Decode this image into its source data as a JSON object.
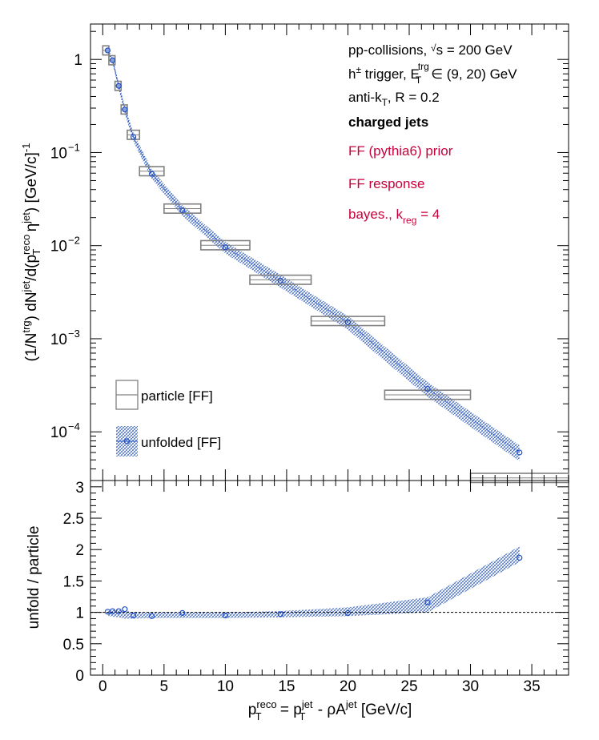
{
  "chart_data": {
    "type": "scatter",
    "top_panel": {
      "ylabel": "(1/N^{trg}) dN^{jet}/d(p_{T}^{reco} η^{jet}) [GeV/c]^{-1}",
      "yscale": "log",
      "ylim": [
        3e-05,
        2.4
      ],
      "ytick_labels": [
        "1",
        "10",
        "10",
        "10",
        "10"
      ],
      "ytick_exps": [
        "",
        "−1",
        "−2",
        "−3",
        "−4"
      ],
      "annotations": {
        "line1": "pp-collisions, √s = 200 GeV",
        "line2": "h± trigger, E_T^trg ∈ (9, 20) GeV",
        "line3": "anti-k_T, R = 0.2",
        "line4": "charged jets",
        "line5": "FF (pythia6) prior",
        "line6": "FF response",
        "line7": "bayes., k_reg = 4"
      },
      "legend": {
        "placement": "bottom-left",
        "entries": [
          "particle [FF]",
          "unfolded [FF]"
        ]
      },
      "particle": {
        "name": "particle [FF]",
        "x_low": [
          0,
          0.5,
          1,
          1.5,
          2,
          3,
          5,
          8,
          12,
          17,
          23,
          30
        ],
        "x_high": [
          0.5,
          1,
          1.5,
          2,
          3,
          5,
          8,
          12,
          17,
          23,
          30,
          38
        ],
        "values": [
          1.25,
          0.98,
          0.52,
          0.29,
          0.155,
          0.063,
          0.025,
          0.0101,
          0.0043,
          0.00155,
          0.00025,
          3.2e-05
        ]
      },
      "unfolded": {
        "name": "unfolded [FF]",
        "x": [
          0.4,
          0.8,
          1.3,
          1.8,
          2.5,
          4,
          6.5,
          10,
          14.5,
          20,
          26.5,
          34
        ],
        "values": [
          1.25,
          0.98,
          0.52,
          0.29,
          0.147,
          0.059,
          0.024,
          0.0096,
          0.0042,
          0.0015,
          0.00029,
          6e-05
        ]
      }
    },
    "bottom_panel": {
      "ylabel": "unfold / particle",
      "ylim": [
        0,
        3.1
      ],
      "yticks": [
        0,
        0.5,
        1,
        1.5,
        2,
        2.5,
        3
      ],
      "ytick_labels": [
        "0",
        "0.5",
        "1",
        "1.5",
        "2",
        "2.5",
        "3"
      ],
      "reference_line": 1,
      "ratio": {
        "x": [
          0.4,
          0.8,
          1.3,
          1.8,
          2.5,
          4,
          6.5,
          10,
          14.5,
          20,
          26.5,
          34
        ],
        "values": [
          1.01,
          1.02,
          1.02,
          1.05,
          0.95,
          0.94,
          0.99,
          0.95,
          0.97,
          0.99,
          1.16,
          1.87
        ]
      },
      "band_low": [
        0.95,
        0.93,
        0.92,
        0.9,
        0.9,
        0.91,
        0.91,
        0.91,
        0.92,
        0.94,
        1.0,
        1.8
      ],
      "band_high": [
        1.03,
        1.04,
        1.04,
        1.03,
        1.0,
        1.0,
        1.0,
        1.0,
        1.02,
        1.08,
        1.24,
        2.05
      ]
    },
    "xlabel": "p_T^reco = p_T^jet - ρA^jet [GeV/c]",
    "xlim": [
      -1,
      38
    ],
    "xticks": [
      0,
      5,
      10,
      15,
      20,
      25,
      30,
      35
    ],
    "xtick_labels": [
      "0",
      "5",
      "10",
      "15",
      "20",
      "25",
      "30",
      "35"
    ]
  }
}
